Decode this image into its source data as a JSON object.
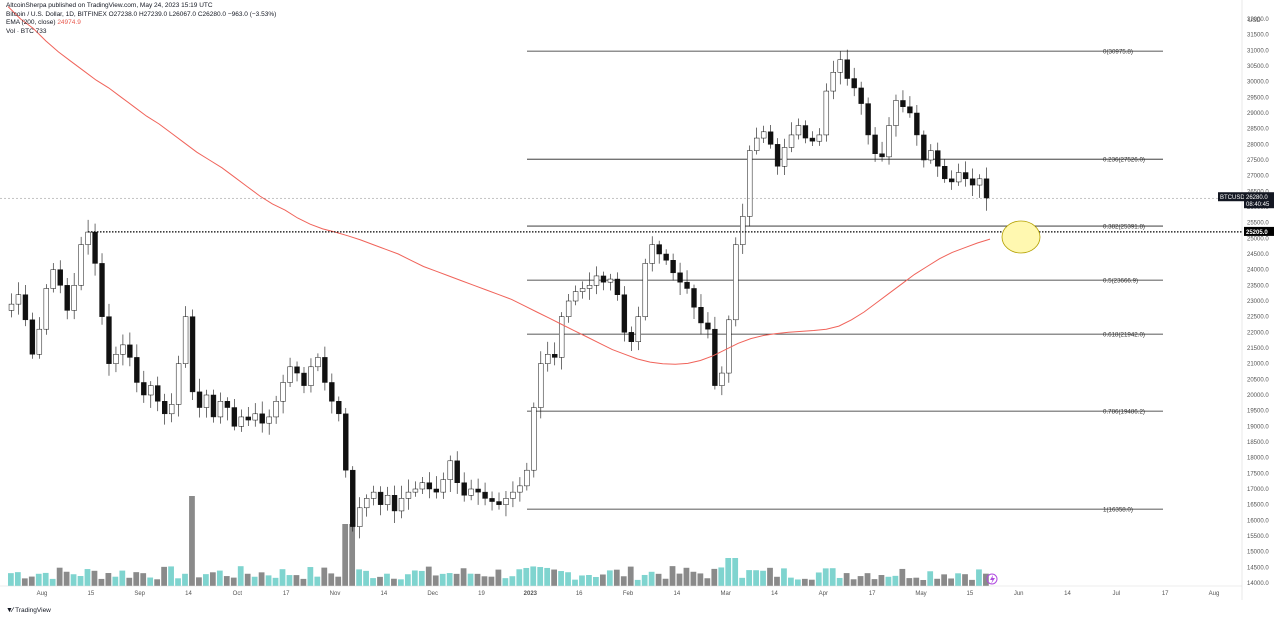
{
  "header": {
    "published": "AltcoinSherpa published on TradingView.com, May 24, 2023 15:19 UTC",
    "symbol_line": "Bitcoin / U.S. Dollar, 1D, BITFINEX  O27238.0  H27239.0  L26067.0  C26280.0  −963.0 (−3.53%)",
    "ema_label": "EMA (200, close)",
    "ema_value": "24974.9",
    "vol_line": "Vol · BTC  733"
  },
  "axis": {
    "currency": "USD",
    "y_ticks": [
      "32000.0",
      "31500.0",
      "31000.0",
      "30500.0",
      "30000.0",
      "29500.0",
      "29000.0",
      "28500.0",
      "28000.0",
      "27500.0",
      "27000.0",
      "26500.0",
      "26000.0",
      "25500.0",
      "25000.0",
      "24500.0",
      "24000.0",
      "23500.0",
      "23000.0",
      "22500.0",
      "22000.0",
      "21500.0",
      "21000.0",
      "20500.0",
      "20000.0",
      "19500.0",
      "19000.0",
      "18500.0",
      "18000.0",
      "17500.0",
      "17000.0",
      "16500.0",
      "16000.0",
      "15500.0",
      "15000.0",
      "14500.0",
      "14000.0"
    ],
    "x_ticks": [
      "Aug",
      "15",
      "Sep",
      "14",
      "Oct",
      "17",
      "Nov",
      "14",
      "Dec",
      "19",
      "2023",
      "16",
      "Feb",
      "14",
      "Mar",
      "14",
      "Apr",
      "17",
      "May",
      "15",
      "Jun",
      "14",
      "Jul",
      "17",
      "Aug"
    ]
  },
  "price_tags": {
    "current_symbol": "BTCUSD",
    "current_price": "26280.0",
    "countdown": "08:40:45",
    "level": "25205.0"
  },
  "colors": {
    "ema": "#f0635a",
    "up_vol": "#7fd4cf",
    "down_vol": "#8a8a8a",
    "highlight_fill": "#fff8b0",
    "highlight_stroke": "#b3a000"
  },
  "footer": {
    "brand": "TradingView"
  },
  "chart_data": {
    "type": "candlestick",
    "price_range": [
      14000,
      32000
    ],
    "fib_levels": [
      {
        "label": "0(30975.8)",
        "value": 30975.8
      },
      {
        "label": "0.236(27526.0)",
        "value": 27526.0
      },
      {
        "label": "0.382(25391.8)",
        "value": 25391.8
      },
      {
        "label": "0.5(23666.9)",
        "value": 23666.9
      },
      {
        "label": "0.618(21942.0)",
        "value": 21942.0
      },
      {
        "label": "0.786(19486.2)",
        "value": 19486.2
      },
      {
        "label": "1(16358.0)",
        "value": 16358.0
      }
    ],
    "support_line": 25205.0,
    "current_price": 26280.0,
    "ema_value": 24974.9,
    "price_path": [
      22900,
      23200,
      22400,
      21300,
      22100,
      23400,
      24000,
      23500,
      22700,
      23500,
      24800,
      25200,
      24200,
      22500,
      21000,
      21300,
      21600,
      21200,
      20400,
      20000,
      20300,
      19800,
      19400,
      19700,
      21000,
      22500,
      20100,
      19600,
      20000,
      19300,
      19800,
      19600,
      19000,
      19300,
      19200,
      19400,
      19100,
      19300,
      19800,
      20400,
      20900,
      20700,
      20300,
      20900,
      21200,
      20400,
      19800,
      19400,
      17600,
      15800,
      16400,
      16700,
      16900,
      16500,
      16800,
      16300,
      16700,
      16900,
      17000,
      17200,
      17000,
      16900,
      17300,
      17900,
      17200,
      16800,
      17000,
      16900,
      16700,
      16600,
      16500,
      16700,
      16900,
      17100,
      17600,
      19600,
      21000,
      21300,
      21200,
      22500,
      23000,
      23300,
      23400,
      23500,
      23800,
      23600,
      23700,
      23200,
      22000,
      21700,
      22500,
      24200,
      24800,
      24500,
      24300,
      23900,
      23600,
      23400,
      22800,
      22300,
      22100,
      20300,
      20700,
      22400,
      24800,
      25700,
      27800,
      28200,
      28400,
      28000,
      27300,
      27900,
      28300,
      28600,
      28200,
      28100,
      28300,
      29700,
      30300,
      30700,
      30100,
      29800,
      29300,
      28300,
      27700,
      27600,
      28600,
      29400,
      29200,
      29000,
      28300,
      27500,
      27800,
      27300,
      26900,
      26800,
      27100,
      26900,
      26700,
      26900,
      26280
    ],
    "ema_path": [
      32400,
      32000,
      31700,
      31300,
      30950,
      30650,
      30350,
      30050,
      29800,
      29500,
      29200,
      28900,
      28650,
      28350,
      28050,
      27750,
      27500,
      27250,
      26950,
      26650,
      26350,
      26100,
      25900,
      25650,
      25450,
      25300,
      25200,
      25080,
      24950,
      24800,
      24650,
      24500,
      24300,
      24100,
      23950,
      23800,
      23650,
      23500,
      23350,
      23200,
      23050,
      22850,
      22650,
      22450,
      22250,
      22050,
      21850,
      21650,
      21450,
      21300,
      21150,
      21050,
      21000,
      20980,
      21010,
      21100,
      21250,
      21450,
      21650,
      21800,
      21900,
      21960,
      22000,
      22030,
      22060,
      22100,
      22200,
      22400,
      22650,
      22950,
      23250,
      23550,
      23850,
      24100,
      24350,
      24550,
      24700,
      24850,
      24974.9
    ]
  }
}
